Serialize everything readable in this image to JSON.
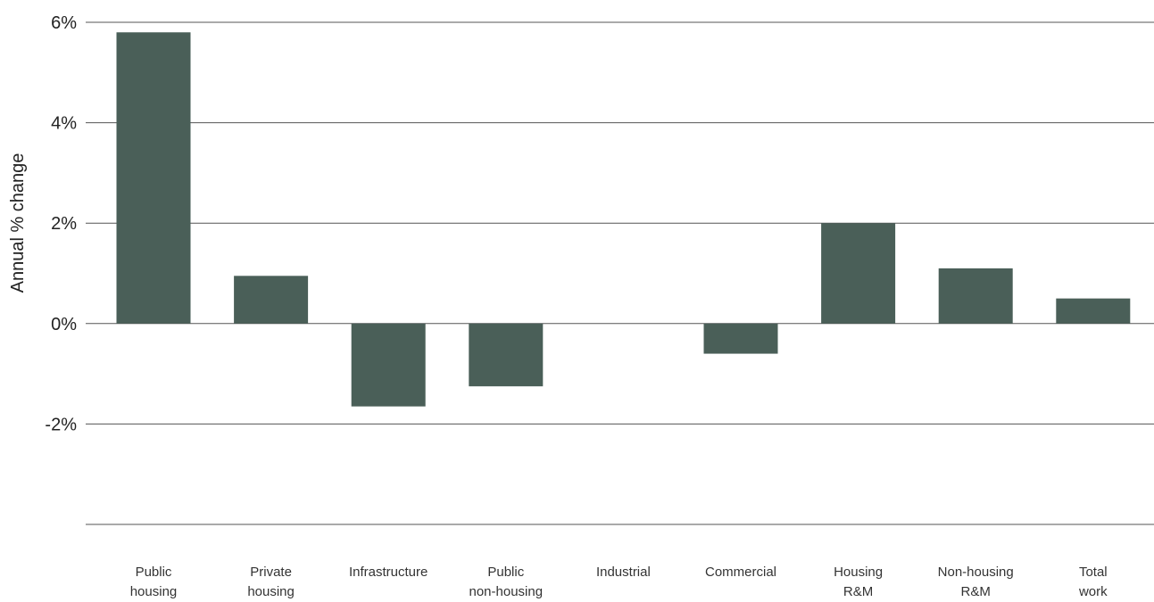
{
  "chart_data": {
    "type": "bar",
    "title": "",
    "xlabel": "",
    "ylabel": "Annual % change",
    "ylim": [
      -4,
      6
    ],
    "yticks": [
      {
        "value": 6,
        "label": "6%"
      },
      {
        "value": 4,
        "label": "4%"
      },
      {
        "value": 2,
        "label": "2%"
      },
      {
        "value": 0,
        "label": "0%"
      },
      {
        "value": -2,
        "label": "-2%"
      },
      {
        "value": -4,
        "label": ""
      }
    ],
    "grid": true,
    "bar_color": "#4a5f58",
    "gridline_color": "#555555",
    "categories": [
      [
        "Public",
        "housing"
      ],
      [
        "Private",
        "housing"
      ],
      [
        "Infrastructure"
      ],
      [
        "Public",
        "non-housing"
      ],
      [
        "Industrial"
      ],
      [
        "Commercial"
      ],
      [
        "Housing",
        "R&M"
      ],
      [
        "Non-housing",
        "R&M"
      ],
      [
        "Total",
        "work"
      ]
    ],
    "values": [
      5.8,
      0.95,
      -1.65,
      -1.25,
      0.0,
      -0.6,
      2.0,
      1.1,
      0.5
    ]
  }
}
